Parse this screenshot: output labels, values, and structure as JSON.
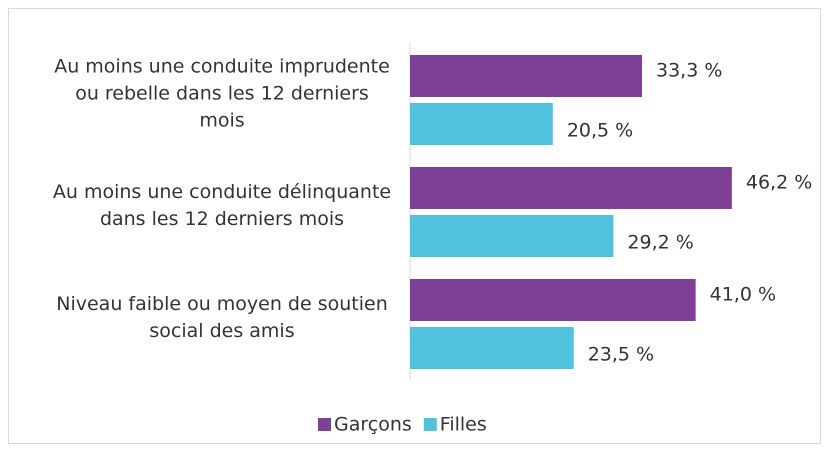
{
  "chart_data": {
    "type": "barh",
    "categories": [
      "Au moins une conduite imprudente ou rebelle dans les 12 derniers mois",
      "Au moins une conduite délinquante dans les 12 derniers mois",
      "Niveau faible ou moyen de soutien social des amis"
    ],
    "series": [
      {
        "name": "Garçons",
        "color": "#7e3f96",
        "values": [
          33.3,
          46.2,
          41.0
        ],
        "value_labels": [
          "33,3 %",
          "46,2 %",
          "41,0 %"
        ]
      },
      {
        "name": "Filles",
        "color": "#4fc3de",
        "values": [
          20.5,
          29.2,
          23.5
        ],
        "value_labels": [
          "20,5 %",
          "29,2 %",
          "23,5 %"
        ]
      }
    ],
    "xlim": [
      0,
      60
    ],
    "legend": "bottom"
  }
}
